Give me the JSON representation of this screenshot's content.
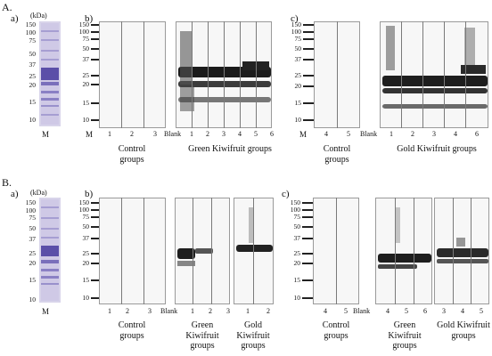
{
  "figure": {
    "panel_A": {
      "label": "A.",
      "sub_a": "a)",
      "sub_b": "b)",
      "sub_c": "c)",
      "kda": "(kDa)",
      "mw_markers": [
        "150",
        "100",
        "75",
        "50",
        "37",
        "25",
        "20",
        "15",
        "10"
      ],
      "m_label": "M",
      "b_lanes_control": [
        "1",
        "2",
        "3"
      ],
      "b_blank": "Blank",
      "b_lanes_green": [
        "1",
        "2",
        "3",
        "4",
        "5",
        "6"
      ],
      "c_lanes_control": [
        "4",
        "5"
      ],
      "c_blank": "Blank",
      "c_lanes_gold": [
        "1",
        "2",
        "3",
        "4",
        "6"
      ],
      "control_groups": "Control groups",
      "green_kiwifruit_groups": "Green Kiwifruit groups",
      "gold_kiwifruit_groups": "Gold Kiwifruit groups"
    },
    "panel_B": {
      "label": "B.",
      "sub_a": "a)",
      "sub_b": "b)",
      "sub_c": "c)",
      "kda": "(kDa)",
      "mw_markers": [
        "150",
        "100",
        "75",
        "50",
        "37",
        "25",
        "20",
        "15",
        "10"
      ],
      "m_label": "M",
      "b_lanes_control": [
        "1",
        "2",
        "3"
      ],
      "b_blank": "Blank",
      "b_lanes_green": [
        "1",
        "2",
        "3"
      ],
      "b_lanes_gold": [
        "1",
        "2"
      ],
      "c_lanes_control": [
        "4",
        "5"
      ],
      "c_blank": "Blank",
      "c_lanes_green": [
        "4",
        "5",
        "6"
      ],
      "c_lanes_gold": [
        "3",
        "4",
        "5"
      ],
      "control_groups": "Control groups",
      "green_kiwifruit_groups": "Green Kiwifruit groups",
      "gold_kiwifruit_groups": "Gold Kiwifruit groups"
    }
  }
}
